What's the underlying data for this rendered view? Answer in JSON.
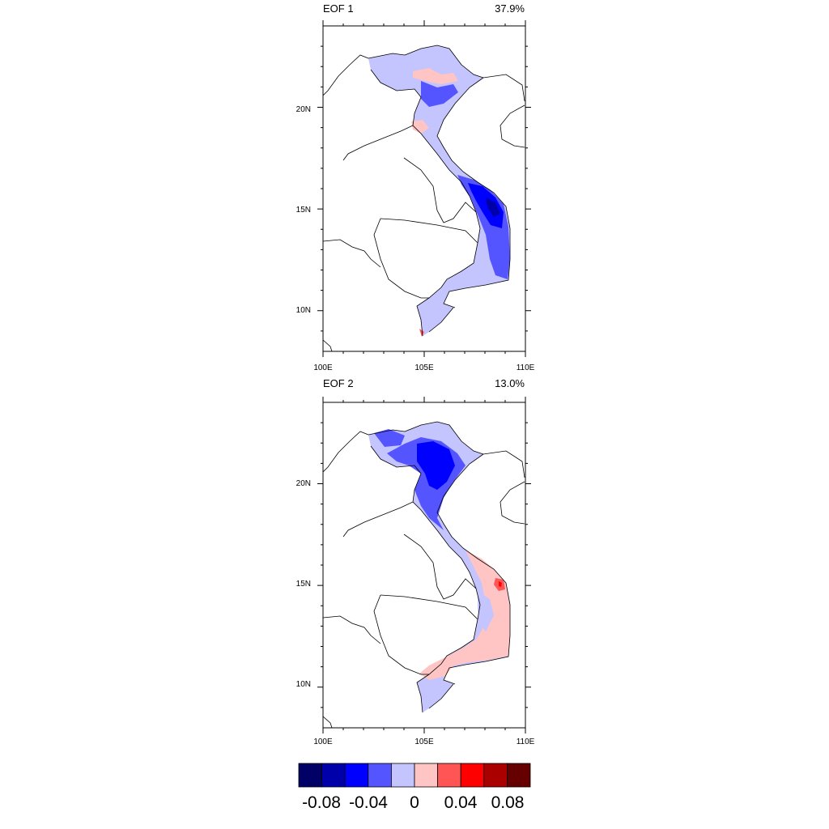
{
  "panels": [
    {
      "title": "EOF 1",
      "variance": "37.9%"
    },
    {
      "title": "EOF 2",
      "variance": "13.0%"
    }
  ],
  "lat_ticks": [
    "20N",
    "15N",
    "10N"
  ],
  "lon_ticks": [
    "100E",
    "105E",
    "110E"
  ],
  "colorbar": {
    "colors": [
      "#000066",
      "#0000aa",
      "#0000ff",
      "#5555ff",
      "#c4c4ff",
      "#ffc4c4",
      "#ff5555",
      "#ff0000",
      "#aa0000",
      "#660000"
    ],
    "labels": [
      "-0.08",
      "-0.04",
      "0",
      "0.04",
      "0.08"
    ]
  },
  "chart_data": {
    "type": "heatmap",
    "description_fields": "EOF spatial patterns over Vietnam",
    "lon_range": [
      100,
      110
    ],
    "lat_range": [
      8,
      24
    ],
    "levels": [
      -0.1,
      -0.08,
      -0.06,
      -0.04,
      -0.02,
      0,
      0.02,
      0.04,
      0.06,
      0.08,
      0.1
    ]
  }
}
